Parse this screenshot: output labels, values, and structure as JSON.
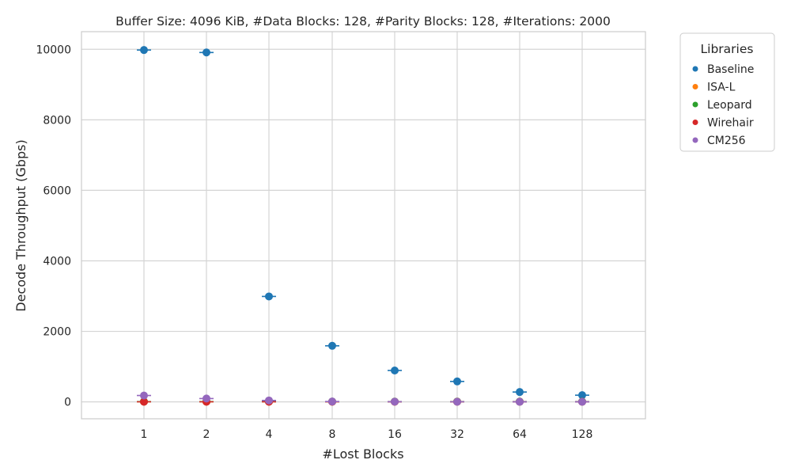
{
  "chart_data": {
    "type": "scatter",
    "title": "Buffer Size: 4096 KiB, #Data Blocks: 128, #Parity Blocks: 128, #Iterations: 2000",
    "xlabel": "#Lost Blocks",
    "ylabel": "Decode Throughput (Gbps)",
    "categories": [
      "1",
      "2",
      "4",
      "8",
      "16",
      "32",
      "64",
      "128"
    ],
    "ylim": [
      -480,
      10500
    ],
    "yticks": [
      0,
      2000,
      4000,
      6000,
      8000,
      10000
    ],
    "grid": true,
    "legend": {
      "title": "Libraries",
      "placement": "outside-top-right"
    },
    "series": [
      {
        "name": "Baseline",
        "color": "#1f77b4",
        "values": [
          9980,
          9910,
          2990,
          1590,
          890,
          580,
          280,
          190
        ]
      },
      {
        "name": "ISA-L",
        "color": "#ff7f0e",
        "values": [
          5,
          5,
          5,
          5,
          5,
          5,
          5,
          5
        ]
      },
      {
        "name": "Leopard",
        "color": "#2ca02c",
        "values": [
          8,
          8,
          8,
          8,
          8,
          8,
          8,
          8
        ]
      },
      {
        "name": "Wirehair",
        "color": "#d62728",
        "values": [
          3,
          3,
          3,
          3,
          3,
          3,
          3,
          3
        ]
      },
      {
        "name": "CM256",
        "color": "#9467bd",
        "values": [
          180,
          95,
          40,
          10,
          5,
          3,
          2,
          2
        ]
      }
    ]
  }
}
